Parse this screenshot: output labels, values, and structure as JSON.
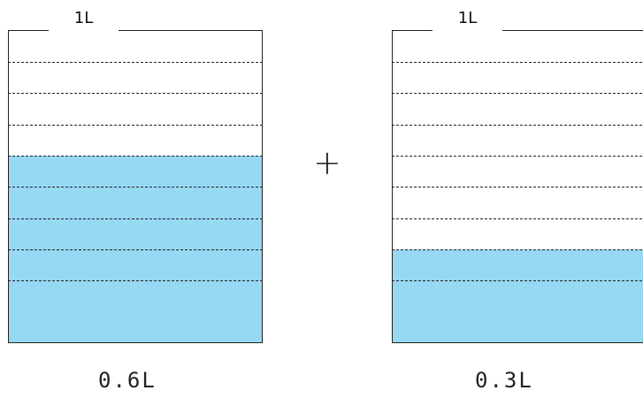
{
  "beakers": [
    {
      "capacity_label": "1L",
      "divisions": 9,
      "filled_divisions": 6,
      "amount_label": "0.6L",
      "fill_color": "#97d8f3"
    },
    {
      "capacity_label": "1L",
      "divisions": 9,
      "filled_divisions": 3,
      "amount_label": "0.3L",
      "fill_color": "#97d8f3"
    }
  ],
  "operator": "+"
}
